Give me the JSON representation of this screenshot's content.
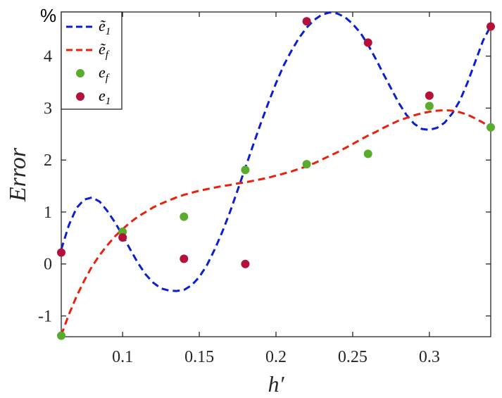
{
  "chart_data": {
    "type": "line",
    "unit_label": "%",
    "xlabel": "h′",
    "ylabel": "Error",
    "xlim": [
      0.06,
      0.34
    ],
    "ylim": [
      -1.4,
      4.85
    ],
    "x_ticks": [
      0.1,
      0.15,
      0.2,
      0.25,
      0.3
    ],
    "x_tick_labels": [
      "0.1",
      "0.15",
      "0.2",
      "0.25",
      "0.3"
    ],
    "y_ticks": [
      -1,
      0,
      1,
      2,
      3,
      4
    ],
    "y_tick_labels": [
      "-1",
      "0",
      "1",
      "2",
      "3",
      "4"
    ],
    "grid": false,
    "legend_position": "top-left",
    "series": [
      {
        "name": "ẽ₁",
        "legend_main": "ẽ",
        "legend_sub": "1",
        "kind": "dashed-line",
        "color": "#0a1fd0",
        "x": [
          0.06,
          0.065,
          0.07,
          0.075,
          0.08,
          0.085,
          0.09,
          0.095,
          0.1,
          0.105,
          0.11,
          0.115,
          0.12,
          0.125,
          0.13,
          0.135,
          0.14,
          0.145,
          0.15,
          0.155,
          0.16,
          0.165,
          0.17,
          0.175,
          0.18,
          0.185,
          0.19,
          0.195,
          0.2,
          0.205,
          0.21,
          0.215,
          0.22,
          0.225,
          0.23,
          0.235,
          0.24,
          0.245,
          0.25,
          0.255,
          0.26,
          0.265,
          0.27,
          0.275,
          0.28,
          0.285,
          0.29,
          0.295,
          0.3,
          0.305,
          0.31,
          0.315,
          0.32,
          0.325,
          0.33,
          0.335,
          0.34
        ],
        "y": [
          0.28,
          0.75,
          1.08,
          1.24,
          1.28,
          1.2,
          1.02,
          0.8,
          0.55,
          0.28,
          0.02,
          -0.2,
          -0.36,
          -0.47,
          -0.51,
          -0.52,
          -0.5,
          -0.41,
          -0.25,
          -0.02,
          0.28,
          0.62,
          1.0,
          1.42,
          1.85,
          2.28,
          2.7,
          3.1,
          3.48,
          3.82,
          4.1,
          4.35,
          4.55,
          4.7,
          4.8,
          4.84,
          4.82,
          4.75,
          4.62,
          4.45,
          4.22,
          3.95,
          3.66,
          3.38,
          3.1,
          2.87,
          2.7,
          2.6,
          2.58,
          2.62,
          2.72,
          2.9,
          3.15,
          3.5,
          3.9,
          4.3,
          4.58
        ]
      },
      {
        "name": "ẽ_f",
        "legend_main": "ẽ",
        "legend_sub": "f",
        "kind": "dashed-line",
        "color": "#e8210c",
        "x": [
          0.06,
          0.065,
          0.07,
          0.075,
          0.08,
          0.085,
          0.09,
          0.095,
          0.1,
          0.105,
          0.11,
          0.115,
          0.12,
          0.125,
          0.13,
          0.135,
          0.14,
          0.145,
          0.15,
          0.155,
          0.16,
          0.165,
          0.17,
          0.175,
          0.18,
          0.185,
          0.19,
          0.195,
          0.2,
          0.205,
          0.21,
          0.215,
          0.22,
          0.225,
          0.23,
          0.235,
          0.24,
          0.245,
          0.25,
          0.255,
          0.26,
          0.265,
          0.27,
          0.275,
          0.28,
          0.285,
          0.29,
          0.295,
          0.3,
          0.305,
          0.31,
          0.315,
          0.32,
          0.325,
          0.33,
          0.335,
          0.34
        ],
        "y": [
          -1.37,
          -0.97,
          -0.62,
          -0.32,
          -0.05,
          0.17,
          0.36,
          0.53,
          0.67,
          0.8,
          0.91,
          1.0,
          1.09,
          1.16,
          1.22,
          1.28,
          1.33,
          1.37,
          1.41,
          1.44,
          1.47,
          1.5,
          1.52,
          1.55,
          1.57,
          1.6,
          1.63,
          1.66,
          1.7,
          1.74,
          1.78,
          1.83,
          1.88,
          1.94,
          2.01,
          2.08,
          2.15,
          2.23,
          2.31,
          2.39,
          2.47,
          2.54,
          2.62,
          2.69,
          2.76,
          2.81,
          2.86,
          2.9,
          2.93,
          2.95,
          2.96,
          2.95,
          2.92,
          2.87,
          2.8,
          2.72,
          2.62
        ]
      },
      {
        "name": "e_f",
        "legend_main": "e",
        "legend_sub": "f",
        "kind": "markers",
        "color": "#5aad2c",
        "x": [
          0.06,
          0.1,
          0.14,
          0.18,
          0.22,
          0.26,
          0.3,
          0.34
        ],
        "y": [
          -1.38,
          0.62,
          0.91,
          1.81,
          1.92,
          2.12,
          3.04,
          2.63
        ]
      },
      {
        "name": "e₁",
        "legend_main": "e",
        "legend_sub": "1",
        "kind": "markers",
        "color": "#b3103a",
        "x": [
          0.06,
          0.1,
          0.14,
          0.18,
          0.22,
          0.26,
          0.3,
          0.34
        ],
        "y": [
          0.22,
          0.51,
          0.1,
          0.0,
          4.67,
          4.26,
          3.24,
          4.57
        ]
      }
    ]
  }
}
